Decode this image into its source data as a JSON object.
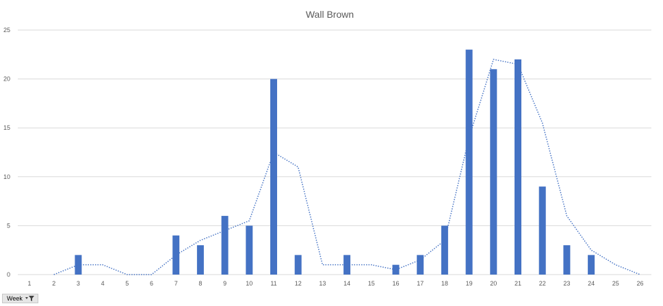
{
  "chart_data": {
    "type": "bar",
    "title": "Wall Brown",
    "xlabel": "",
    "ylabel": "",
    "categories": [
      "1",
      "2",
      "3",
      "4",
      "5",
      "6",
      "7",
      "8",
      "9",
      "10",
      "11",
      "12",
      "13",
      "14",
      "15",
      "16",
      "17",
      "18",
      "19",
      "20",
      "21",
      "22",
      "23",
      "24",
      "25",
      "26"
    ],
    "series": [
      {
        "type": "bar",
        "values": [
          null,
          null,
          2,
          null,
          null,
          null,
          4,
          3,
          6,
          5,
          20,
          2,
          null,
          2,
          null,
          1,
          2,
          5,
          23,
          21,
          22,
          9,
          3,
          2,
          null,
          null
        ],
        "color": "#4472c4"
      },
      {
        "type": "line",
        "style": "dotted",
        "trendline": "2 per. moving average",
        "values": [
          null,
          0,
          1,
          1,
          0,
          0,
          2,
          3.5,
          4.5,
          5.5,
          12.5,
          11,
          1,
          1,
          1,
          0.5,
          1.5,
          3.5,
          14,
          22,
          21.5,
          15.5,
          6,
          2.5,
          1,
          0
        ],
        "color": "#4472c4"
      }
    ],
    "yticks": [
      "0",
      "5",
      "10",
      "15",
      "20",
      "25"
    ],
    "ylim": [
      0,
      25
    ],
    "grid": true,
    "legend": "none"
  },
  "filter_button": {
    "label": "Week",
    "icon": "filter-icon"
  },
  "colors": {
    "bar": "#4472c4",
    "gridline": "#d9d9d9",
    "axis_text": "#595959"
  }
}
